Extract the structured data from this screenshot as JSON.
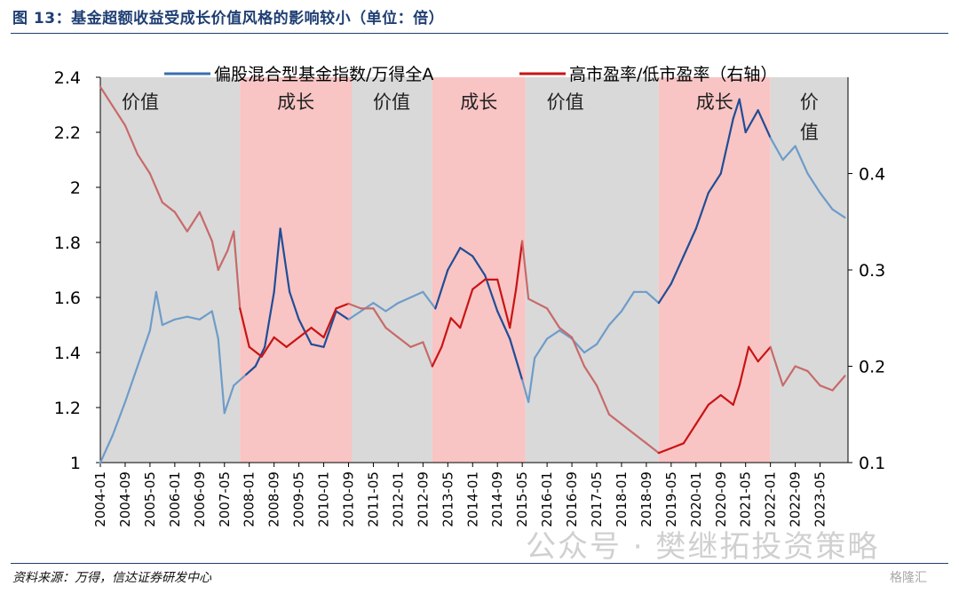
{
  "title": "图 13：基金超额收益受成长价值风格的影响较小（单位：倍）",
  "source": "资料来源：万得，信达证券研发中心",
  "watermark": "公众号 · 樊继拓投资策略",
  "logo_text": "格隆汇",
  "colors": {
    "title": "#1f3f73",
    "value_band": "#d9d9d9",
    "growth_band": "#f9c4c4",
    "series_blue": "#3a6fb0",
    "series_red": "#c81414"
  },
  "chart_data": {
    "type": "line",
    "title": "",
    "xlabel": "",
    "ylabel": "",
    "x_ticks": [
      "2004-01",
      "2004-09",
      "2005-05",
      "2006-01",
      "2006-09",
      "2007-05",
      "2008-01",
      "2008-09",
      "2009-05",
      "2010-01",
      "2010-09",
      "2011-05",
      "2012-01",
      "2012-09",
      "2013-05",
      "2014-01",
      "2014-09",
      "2015-05",
      "2016-01",
      "2016-09",
      "2017-05",
      "2018-01",
      "2018-09",
      "2019-05",
      "2020-01",
      "2020-09",
      "2021-05",
      "2022-01",
      "2022-09",
      "2023-05"
    ],
    "xlim": [
      "2004-01",
      "2024-02"
    ],
    "ylim_left": [
      1,
      2.4
    ],
    "ylim_right": [
      0.1,
      0.5
    ],
    "y_ticks_left": [
      "1",
      "1.2",
      "1.4",
      "1.6",
      "1.8",
      "2",
      "2.2",
      "2.4"
    ],
    "y_ticks_right": [
      "0.1",
      "0.2",
      "0.3",
      "0.4"
    ],
    "legend_position": "top",
    "legend": [
      "偏股混合型基金指数/万得全A",
      "高市盈率/低市盈率（右轴）"
    ],
    "regimes": [
      {
        "label": "价值",
        "style": "value",
        "start": "2004-01",
        "end": "2007-10"
      },
      {
        "label": "成长",
        "style": "growth",
        "start": "2007-10",
        "end": "2010-10"
      },
      {
        "label": "价值",
        "style": "value",
        "start": "2010-10",
        "end": "2012-12"
      },
      {
        "label": "成长",
        "style": "growth",
        "start": "2012-12",
        "end": "2015-06"
      },
      {
        "label": "价值",
        "style": "value",
        "start": "2015-06",
        "end": "2019-01"
      },
      {
        "label": "成长",
        "style": "growth",
        "start": "2019-01",
        "end": "2022-01"
      },
      {
        "label": "价值",
        "style": "value",
        "start": "2022-01",
        "end": "2024-02"
      }
    ],
    "series": [
      {
        "name": "偏股混合型基金指数/万得全A",
        "axis": "left",
        "color": "#3a6fb0",
        "points": [
          [
            "2004-01",
            1.0
          ],
          [
            "2004-05",
            1.1
          ],
          [
            "2004-09",
            1.22
          ],
          [
            "2005-01",
            1.35
          ],
          [
            "2005-05",
            1.48
          ],
          [
            "2005-07",
            1.62
          ],
          [
            "2005-09",
            1.5
          ],
          [
            "2006-01",
            1.52
          ],
          [
            "2006-05",
            1.53
          ],
          [
            "2006-09",
            1.52
          ],
          [
            "2007-01",
            1.55
          ],
          [
            "2007-03",
            1.45
          ],
          [
            "2007-05",
            1.18
          ],
          [
            "2007-08",
            1.28
          ],
          [
            "2007-12",
            1.32
          ],
          [
            "2008-03",
            1.35
          ],
          [
            "2008-06",
            1.42
          ],
          [
            "2008-09",
            1.62
          ],
          [
            "2008-11",
            1.85
          ],
          [
            "2009-02",
            1.62
          ],
          [
            "2009-05",
            1.52
          ],
          [
            "2009-09",
            1.43
          ],
          [
            "2010-01",
            1.42
          ],
          [
            "2010-05",
            1.55
          ],
          [
            "2010-09",
            1.52
          ],
          [
            "2011-01",
            1.55
          ],
          [
            "2011-05",
            1.58
          ],
          [
            "2011-09",
            1.55
          ],
          [
            "2012-01",
            1.58
          ],
          [
            "2012-05",
            1.6
          ],
          [
            "2012-09",
            1.62
          ],
          [
            "2013-01",
            1.56
          ],
          [
            "2013-05",
            1.7
          ],
          [
            "2013-09",
            1.78
          ],
          [
            "2014-01",
            1.75
          ],
          [
            "2014-05",
            1.68
          ],
          [
            "2014-09",
            1.55
          ],
          [
            "2015-01",
            1.45
          ],
          [
            "2015-05",
            1.3
          ],
          [
            "2015-07",
            1.22
          ],
          [
            "2015-09",
            1.38
          ],
          [
            "2016-01",
            1.45
          ],
          [
            "2016-05",
            1.48
          ],
          [
            "2016-09",
            1.45
          ],
          [
            "2017-01",
            1.4
          ],
          [
            "2017-05",
            1.43
          ],
          [
            "2017-09",
            1.5
          ],
          [
            "2018-01",
            1.55
          ],
          [
            "2018-05",
            1.62
          ],
          [
            "2018-09",
            1.62
          ],
          [
            "2019-01",
            1.58
          ],
          [
            "2019-05",
            1.65
          ],
          [
            "2019-09",
            1.75
          ],
          [
            "2020-01",
            1.85
          ],
          [
            "2020-05",
            1.98
          ],
          [
            "2020-09",
            2.05
          ],
          [
            "2021-01",
            2.25
          ],
          [
            "2021-03",
            2.32
          ],
          [
            "2021-05",
            2.2
          ],
          [
            "2021-09",
            2.28
          ],
          [
            "2022-01",
            2.18
          ],
          [
            "2022-05",
            2.1
          ],
          [
            "2022-09",
            2.15
          ],
          [
            "2023-01",
            2.05
          ],
          [
            "2023-05",
            1.98
          ],
          [
            "2023-09",
            1.92
          ],
          [
            "2024-01",
            1.89
          ]
        ]
      },
      {
        "name": "高市盈率/低市盈率（右轴）",
        "axis": "right",
        "color": "#c81414",
        "points": [
          [
            "2004-01",
            0.49
          ],
          [
            "2004-05",
            0.47
          ],
          [
            "2004-09",
            0.45
          ],
          [
            "2005-01",
            0.42
          ],
          [
            "2005-05",
            0.4
          ],
          [
            "2005-09",
            0.37
          ],
          [
            "2006-01",
            0.36
          ],
          [
            "2006-05",
            0.34
          ],
          [
            "2006-09",
            0.36
          ],
          [
            "2007-01",
            0.33
          ],
          [
            "2007-03",
            0.3
          ],
          [
            "2007-06",
            0.32
          ],
          [
            "2007-08",
            0.34
          ],
          [
            "2007-10",
            0.26
          ],
          [
            "2008-01",
            0.22
          ],
          [
            "2008-05",
            0.21
          ],
          [
            "2008-09",
            0.23
          ],
          [
            "2009-01",
            0.22
          ],
          [
            "2009-05",
            0.23
          ],
          [
            "2009-09",
            0.24
          ],
          [
            "2010-01",
            0.23
          ],
          [
            "2010-05",
            0.26
          ],
          [
            "2010-09",
            0.265
          ],
          [
            "2011-01",
            0.26
          ],
          [
            "2011-05",
            0.26
          ],
          [
            "2011-09",
            0.24
          ],
          [
            "2012-01",
            0.23
          ],
          [
            "2012-05",
            0.22
          ],
          [
            "2012-09",
            0.225
          ],
          [
            "2012-12",
            0.2
          ],
          [
            "2013-03",
            0.22
          ],
          [
            "2013-06",
            0.25
          ],
          [
            "2013-09",
            0.24
          ],
          [
            "2014-01",
            0.28
          ],
          [
            "2014-05",
            0.29
          ],
          [
            "2014-09",
            0.29
          ],
          [
            "2015-01",
            0.24
          ],
          [
            "2015-03",
            0.28
          ],
          [
            "2015-05",
            0.33
          ],
          [
            "2015-07",
            0.27
          ],
          [
            "2016-01",
            0.26
          ],
          [
            "2016-05",
            0.24
          ],
          [
            "2016-09",
            0.23
          ],
          [
            "2017-01",
            0.2
          ],
          [
            "2017-05",
            0.18
          ],
          [
            "2017-09",
            0.15
          ],
          [
            "2018-01",
            0.14
          ],
          [
            "2018-05",
            0.13
          ],
          [
            "2018-09",
            0.12
          ],
          [
            "2019-01",
            0.11
          ],
          [
            "2019-05",
            0.115
          ],
          [
            "2019-09",
            0.12
          ],
          [
            "2020-01",
            0.14
          ],
          [
            "2020-05",
            0.16
          ],
          [
            "2020-09",
            0.17
          ],
          [
            "2021-01",
            0.16
          ],
          [
            "2021-03",
            0.18
          ],
          [
            "2021-06",
            0.22
          ],
          [
            "2021-09",
            0.205
          ],
          [
            "2022-01",
            0.22
          ],
          [
            "2022-05",
            0.18
          ],
          [
            "2022-09",
            0.2
          ],
          [
            "2023-01",
            0.195
          ],
          [
            "2023-05",
            0.18
          ],
          [
            "2023-09",
            0.175
          ],
          [
            "2024-01",
            0.19
          ]
        ]
      }
    ]
  }
}
